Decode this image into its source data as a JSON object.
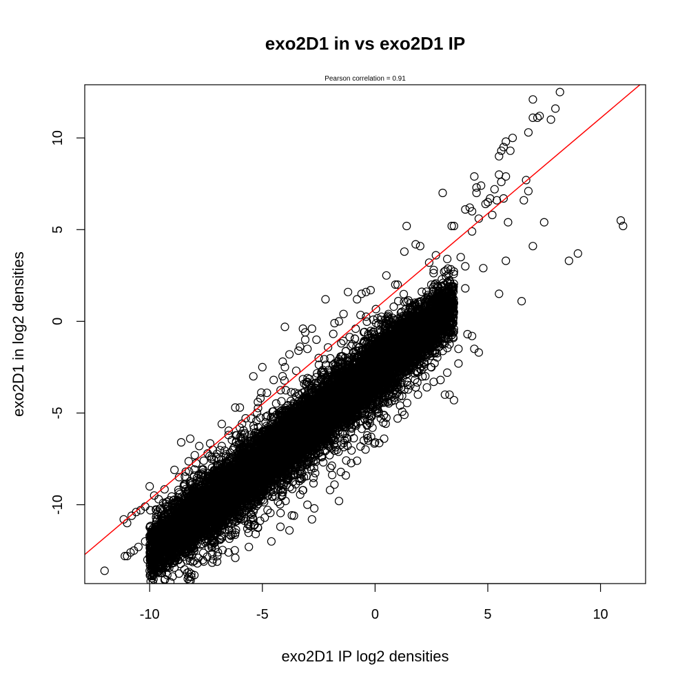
{
  "chart_data": {
    "type": "scatter",
    "title": "exo2D1 in vs exo2D1 IP",
    "subtitle": "Pearson correlation =  0.91",
    "xlabel": "exo2D1 IP log2 densities",
    "ylabel": "exo2D1 in log2 densities",
    "xlim": [
      -12.88,
      12.0
    ],
    "ylim": [
      -14.3,
      12.9
    ],
    "xticks": [
      -10,
      -5,
      0,
      5,
      10
    ],
    "yticks": [
      -10,
      -5,
      0,
      5,
      10
    ],
    "xtick_labels": [
      "-10",
      "-5",
      "0",
      "5",
      "10"
    ],
    "ytick_labels": [
      "-10",
      "-5",
      "0",
      "5",
      "10"
    ],
    "grid": false,
    "marker": "open-circle",
    "marker_color": "#000000",
    "fit_line": {
      "color": "#ff0000",
      "intercept": 0.68,
      "slope": 1.04
    },
    "series": [
      {
        "points": [
          [
            -12.0,
            -13.6
          ],
          [
            -11.1,
            -12.8
          ],
          [
            -11.0,
            -12.8
          ],
          [
            -10.85,
            -12.6
          ],
          [
            -10.7,
            -12.5
          ],
          [
            -10.5,
            -12.3
          ],
          [
            -10.2,
            -12.0
          ],
          [
            -10.0,
            -11.7
          ],
          [
            -9.8,
            -11.5
          ],
          [
            -9.6,
            -11.4
          ],
          [
            -9.4,
            -11.2
          ],
          [
            -9.2,
            -11.0
          ],
          [
            -9.0,
            -10.8
          ],
          [
            -8.8,
            -10.6
          ],
          [
            -11.15,
            -10.8
          ],
          [
            -11.0,
            -11.0
          ],
          [
            -10.8,
            -10.6
          ],
          [
            -10.6,
            -10.4
          ],
          [
            -10.4,
            -10.3
          ],
          [
            -10.2,
            -10.1
          ],
          [
            -10.0,
            -9.0
          ],
          [
            -9.8,
            -9.5
          ],
          [
            -9.6,
            -9.7
          ],
          [
            -9.4,
            -9.9
          ],
          [
            -10.1,
            -13.0
          ],
          [
            -9.9,
            -12.8
          ],
          [
            -9.5,
            -13.0
          ],
          [
            -9.3,
            -13.4
          ],
          [
            -9.2,
            -13.4
          ],
          [
            -9.0,
            -13.2
          ],
          [
            -8.8,
            -12.9
          ],
          [
            -7.6,
            -13.1
          ],
          [
            -7.0,
            -12.8
          ],
          [
            -6.2,
            -12.9
          ],
          [
            -8.6,
            -6.6
          ],
          [
            -8.2,
            -6.4
          ],
          [
            -7.8,
            -6.8
          ],
          [
            -8.9,
            -8.1
          ],
          [
            -8.7,
            -8.5
          ],
          [
            -8.4,
            -8.2
          ],
          [
            -8.0,
            -7.3
          ],
          [
            -7.6,
            -7.6
          ],
          [
            -7.2,
            -7.0
          ],
          [
            -6.8,
            -6.8
          ],
          [
            -6.5,
            -6.2
          ],
          [
            -6.0,
            -5.8
          ],
          [
            -6.8,
            -5.6
          ],
          [
            -6.2,
            -4.7
          ],
          [
            -6.0,
            -4.7
          ],
          [
            -5.5,
            -5.3
          ],
          [
            -5.2,
            -4.4
          ],
          [
            -4.8,
            -3.9
          ],
          [
            -5.0,
            -2.5
          ],
          [
            -4.1,
            -2.2
          ],
          [
            -4.0,
            -2.5
          ],
          [
            -3.8,
            -1.8
          ],
          [
            -3.4,
            -1.6
          ],
          [
            -3.0,
            -1.5
          ],
          [
            -4.0,
            -0.3
          ],
          [
            -3.2,
            -0.4
          ],
          [
            -3.1,
            -0.6
          ],
          [
            -3.1,
            -1.0
          ],
          [
            -2.8,
            -0.4
          ],
          [
            -2.6,
            -1.0
          ],
          [
            -2.2,
            1.2
          ],
          [
            -1.8,
            -0.1
          ],
          [
            -1.6,
            0.0
          ],
          [
            -1.4,
            0.4
          ],
          [
            -1.2,
            1.6
          ],
          [
            -0.8,
            1.2
          ],
          [
            -0.6,
            1.5
          ],
          [
            -0.4,
            1.6
          ],
          [
            -0.2,
            1.7
          ],
          [
            0.5,
            2.5
          ],
          [
            0.9,
            2.0
          ],
          [
            1.0,
            2.0
          ],
          [
            1.3,
            3.8
          ],
          [
            1.4,
            5.2
          ],
          [
            1.8,
            4.2
          ],
          [
            2.0,
            4.1
          ],
          [
            2.4,
            3.2
          ],
          [
            2.7,
            3.6
          ],
          [
            3.0,
            7.0
          ],
          [
            3.4,
            5.2
          ],
          [
            3.5,
            5.2
          ],
          [
            2.6,
            2.8
          ],
          [
            3.2,
            3.4
          ],
          [
            3.8,
            3.5
          ],
          [
            4.0,
            3.0
          ],
          [
            4.3,
            4.9
          ],
          [
            4.8,
            2.9
          ],
          [
            4.0,
            6.1
          ],
          [
            4.2,
            6.2
          ],
          [
            4.3,
            6.0
          ],
          [
            4.4,
            7.9
          ],
          [
            4.5,
            7.0
          ],
          [
            4.5,
            7.3
          ],
          [
            4.6,
            5.6
          ],
          [
            4.7,
            7.4
          ],
          [
            4.9,
            6.4
          ],
          [
            5.2,
            5.8
          ],
          [
            5.1,
            6.7
          ],
          [
            5.0,
            6.5
          ],
          [
            5.3,
            7.2
          ],
          [
            5.4,
            6.6
          ],
          [
            5.5,
            8.0
          ],
          [
            5.5,
            9.0
          ],
          [
            5.6,
            9.3
          ],
          [
            5.7,
            9.5
          ],
          [
            5.8,
            9.8
          ],
          [
            5.8,
            7.9
          ],
          [
            5.6,
            7.6
          ],
          [
            5.7,
            6.7
          ],
          [
            5.9,
            5.4
          ],
          [
            6.0,
            9.3
          ],
          [
            6.1,
            10.0
          ],
          [
            6.6,
            6.6
          ],
          [
            6.7,
            7.7
          ],
          [
            6.8,
            7.1
          ],
          [
            6.8,
            10.3
          ],
          [
            7.0,
            11.1
          ],
          [
            7.0,
            12.1
          ],
          [
            7.2,
            11.1
          ],
          [
            7.3,
            11.2
          ],
          [
            7.8,
            11.0
          ],
          [
            8.0,
            11.6
          ],
          [
            8.2,
            12.5
          ],
          [
            5.5,
            1.5
          ],
          [
            5.8,
            3.3
          ],
          [
            6.5,
            1.1
          ],
          [
            7.0,
            4.1
          ],
          [
            7.5,
            5.4
          ],
          [
            8.6,
            3.3
          ],
          [
            9.0,
            3.7
          ],
          [
            10.9,
            5.5
          ],
          [
            11.0,
            5.2
          ],
          [
            0.0,
            -6.6
          ],
          [
            -0.3,
            -6.5
          ],
          [
            -0.5,
            -6.5
          ],
          [
            0.4,
            -6.4
          ],
          [
            1.0,
            -5.3
          ],
          [
            1.3,
            -5.1
          ],
          [
            1.8,
            -3.6
          ],
          [
            1.9,
            -4.0
          ],
          [
            2.3,
            -3.6
          ],
          [
            2.6,
            -3.3
          ],
          [
            2.9,
            -3.2
          ],
          [
            3.2,
            -2.8
          ],
          [
            3.1,
            -4.0
          ],
          [
            3.3,
            -4.0
          ],
          [
            3.5,
            -4.3
          ],
          [
            3.7,
            -2.3
          ],
          [
            3.7,
            -1.5
          ],
          [
            4.1,
            -0.7
          ],
          [
            4.3,
            -0.8
          ],
          [
            4.4,
            -1.5
          ],
          [
            4.6,
            -1.7
          ],
          [
            2.5,
            -0.8
          ],
          [
            2.0,
            -1.0
          ],
          [
            -2.7,
            -10.2
          ],
          [
            -2.0,
            -9.2
          ],
          [
            -1.8,
            -8.9
          ],
          [
            -1.3,
            -8.4
          ],
          [
            -0.8,
            -7.6
          ],
          [
            -5.3,
            -11.6
          ],
          [
            -4.2,
            -11.2
          ],
          [
            -3.6,
            -10.6
          ],
          [
            -3.0,
            -10.0
          ],
          [
            -1.6,
            -9.8
          ],
          [
            -6.5,
            -12.6
          ],
          [
            -5.6,
            -12.3
          ],
          [
            -4.6,
            -12.0
          ],
          [
            -3.8,
            -11.4
          ],
          [
            -2.8,
            -10.8
          ],
          [
            -5.4,
            -3.0
          ],
          [
            -4.5,
            -3.2
          ],
          [
            -3.5,
            -2.7
          ],
          [
            -2.5,
            -2.0
          ],
          [
            -1.5,
            -1.2
          ],
          [
            -0.5,
            -0.6
          ],
          [
            0.5,
            0.0
          ],
          [
            -3.0,
            -3.3
          ],
          [
            -2.0,
            -2.8
          ],
          [
            -1.0,
            -2.5
          ],
          [
            0.0,
            -1.8
          ],
          [
            1.0,
            -1.0
          ],
          [
            2.0,
            -0.3
          ],
          [
            3.0,
            0.6
          ],
          [
            -7.5,
            -10.5
          ],
          [
            -7.0,
            -10.2
          ],
          [
            -6.5,
            -9.8
          ],
          [
            -6.0,
            -9.3
          ],
          [
            -5.5,
            -8.8
          ],
          [
            -5.0,
            -8.3
          ],
          [
            -4.5,
            -7.8
          ],
          [
            -4.0,
            -7.2
          ],
          [
            -3.5,
            -6.8
          ],
          [
            -3.0,
            -6.3
          ],
          [
            -2.5,
            -5.9
          ],
          [
            -2.0,
            -5.4
          ],
          [
            -1.5,
            -4.8
          ],
          [
            -1.0,
            -4.3
          ],
          [
            -0.5,
            -3.8
          ],
          [
            0.0,
            -3.3
          ],
          [
            0.5,
            -2.6
          ],
          [
            1.0,
            -2.1
          ],
          [
            1.5,
            -1.5
          ],
          [
            2.0,
            -0.9
          ],
          [
            2.5,
            -0.3
          ],
          [
            3.0,
            0.3
          ],
          [
            3.5,
            1.0
          ],
          [
            4.0,
            1.8
          ]
        ]
      }
    ],
    "cloud_density_bands": [
      {
        "x0": -10.0,
        "x1": 3.5,
        "center_intercept": -2.6,
        "slope": 1.0,
        "spread": 1.8,
        "count": 9000
      },
      {
        "x0": -8.5,
        "x1": 1.5,
        "center_intercept": -2.9,
        "slope": 1.0,
        "spread": 2.8,
        "count": 2600
      },
      {
        "x0": -6.0,
        "x1": 0.5,
        "center_intercept": -3.0,
        "slope": 1.0,
        "spread": 1.0,
        "count": 2000
      }
    ]
  }
}
